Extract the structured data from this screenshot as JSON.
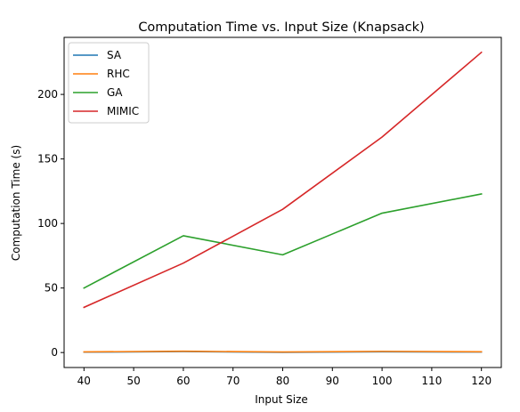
{
  "chart_data": {
    "type": "line",
    "title": "Computation Time vs. Input Size (Knapsack)",
    "xlabel": "Input Size",
    "ylabel": "Computation Time (s)",
    "x": [
      40,
      60,
      80,
      100,
      120
    ],
    "xlim": [
      36,
      124
    ],
    "ylim": [
      -11.6,
      244.2
    ],
    "xticks": [
      "40",
      "50",
      "60",
      "70",
      "80",
      "90",
      "100",
      "110",
      "120"
    ],
    "yticks": [
      "0",
      "50",
      "100",
      "150",
      "200"
    ],
    "grid": false,
    "legend_position": "upper-left",
    "series": [
      {
        "name": "SA",
        "color": "#1f77b4",
        "values": [
          0.3,
          0.8,
          0.2,
          0.6,
          0.4
        ]
      },
      {
        "name": "RHC",
        "color": "#ff7f0e",
        "values": [
          0.5,
          1.0,
          0.4,
          0.9,
          0.6
        ]
      },
      {
        "name": "GA",
        "color": "#2ca02c",
        "values": [
          50,
          90.5,
          75.7,
          108,
          122.9
        ]
      },
      {
        "name": "MIMIC",
        "color": "#d62728",
        "values": [
          35,
          69.3,
          111,
          167,
          232.6
        ]
      }
    ]
  }
}
